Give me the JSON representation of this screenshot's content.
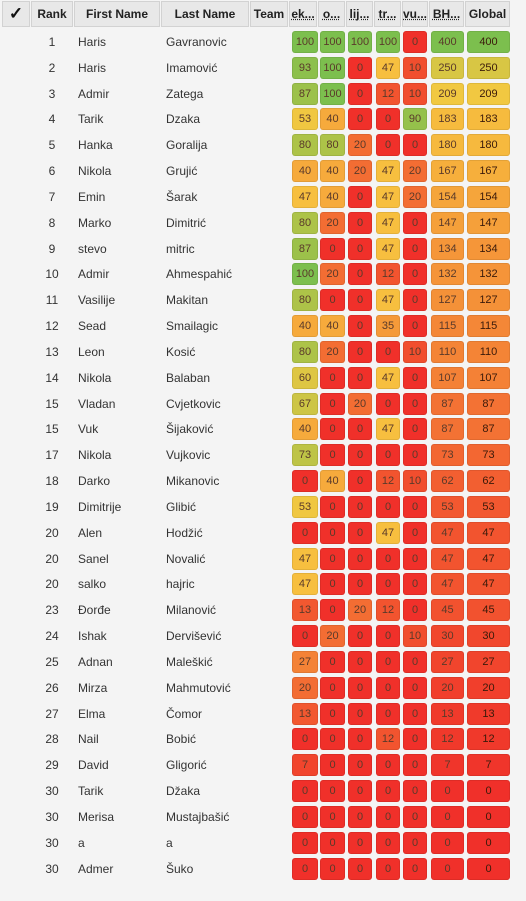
{
  "columns": {
    "check": "✓",
    "rank": "Rank",
    "first_name": "First Name",
    "last_name": "Last Name",
    "team": "Team",
    "c1": "ek...",
    "c2": "o...",
    "c3": "lij...",
    "c4": "tr...",
    "c5": "vu...",
    "c6": "BH...",
    "global": "Global"
  },
  "rows": [
    {
      "rank": "1",
      "first": "Haris",
      "last": "Gavranovic",
      "scores": [
        100,
        100,
        100,
        100,
        0,
        400
      ],
      "global": 400
    },
    {
      "rank": "2",
      "first": "Haris",
      "last": "Imamović",
      "scores": [
        93,
        100,
        0,
        47,
        10,
        250
      ],
      "global": 250
    },
    {
      "rank": "3",
      "first": "Admir",
      "last": "Zatega",
      "scores": [
        87,
        100,
        0,
        12,
        10,
        209
      ],
      "global": 209
    },
    {
      "rank": "4",
      "first": "Tarik",
      "last": "Dzaka",
      "scores": [
        53,
        40,
        0,
        0,
        90,
        183
      ],
      "global": 183
    },
    {
      "rank": "5",
      "first": "Hanka",
      "last": "Goralija",
      "scores": [
        80,
        80,
        20,
        0,
        0,
        180
      ],
      "global": 180
    },
    {
      "rank": "6",
      "first": "Nikola",
      "last": "Grujić",
      "scores": [
        40,
        40,
        20,
        47,
        20,
        167
      ],
      "global": 167
    },
    {
      "rank": "7",
      "first": "Emin",
      "last": "Šarak",
      "scores": [
        47,
        40,
        0,
        47,
        20,
        154
      ],
      "global": 154
    },
    {
      "rank": "8",
      "first": "Marko",
      "last": "Dimitrić",
      "scores": [
        80,
        20,
        0,
        47,
        0,
        147
      ],
      "global": 147
    },
    {
      "rank": "9",
      "first": "stevo",
      "last": "mitric",
      "scores": [
        87,
        0,
        0,
        47,
        0,
        134
      ],
      "global": 134
    },
    {
      "rank": "10",
      "first": "Admir",
      "last": "Ahmespahić",
      "scores": [
        100,
        20,
        0,
        12,
        0,
        132
      ],
      "global": 132
    },
    {
      "rank": "11",
      "first": "Vasilije",
      "last": "Makitan",
      "scores": [
        80,
        0,
        0,
        47,
        0,
        127
      ],
      "global": 127
    },
    {
      "rank": "12",
      "first": "Sead",
      "last": "Smailagic",
      "scores": [
        40,
        40,
        0,
        35,
        0,
        115
      ],
      "global": 115
    },
    {
      "rank": "13",
      "first": "Leon",
      "last": "Kosić",
      "scores": [
        80,
        20,
        0,
        0,
        10,
        110
      ],
      "global": 110
    },
    {
      "rank": "14",
      "first": "Nikola",
      "last": "Balaban",
      "scores": [
        60,
        0,
        0,
        47,
        0,
        107
      ],
      "global": 107
    },
    {
      "rank": "15",
      "first": "Vladan",
      "last": "Cvjetkovic",
      "scores": [
        67,
        0,
        20,
        0,
        0,
        87
      ],
      "global": 87
    },
    {
      "rank": "15",
      "first": "Vuk",
      "last": "Šijaković",
      "scores": [
        40,
        0,
        0,
        47,
        0,
        87
      ],
      "global": 87
    },
    {
      "rank": "17",
      "first": "Nikola",
      "last": "Vujkovic",
      "scores": [
        73,
        0,
        0,
        0,
        0,
        73
      ],
      "global": 73
    },
    {
      "rank": "18",
      "first": "Darko",
      "last": "Mikanovic",
      "scores": [
        0,
        40,
        0,
        12,
        10,
        62
      ],
      "global": 62
    },
    {
      "rank": "19",
      "first": "Dimitrije",
      "last": "Glibić",
      "scores": [
        53,
        0,
        0,
        0,
        0,
        53
      ],
      "global": 53
    },
    {
      "rank": "20",
      "first": "Alen",
      "last": "Hodžić",
      "scores": [
        0,
        0,
        0,
        47,
        0,
        47
      ],
      "global": 47
    },
    {
      "rank": "20",
      "first": "Sanel",
      "last": "Novalić",
      "scores": [
        47,
        0,
        0,
        0,
        0,
        47
      ],
      "global": 47
    },
    {
      "rank": "20",
      "first": "salko",
      "last": "hajric",
      "scores": [
        47,
        0,
        0,
        0,
        0,
        47
      ],
      "global": 47
    },
    {
      "rank": "23",
      "first": "Đorđe",
      "last": "Milanović",
      "scores": [
        13,
        0,
        20,
        12,
        0,
        45
      ],
      "global": 45
    },
    {
      "rank": "24",
      "first": "Ishak",
      "last": "Dervišević",
      "scores": [
        0,
        20,
        0,
        0,
        10,
        30
      ],
      "global": 30
    },
    {
      "rank": "25",
      "first": "Adnan",
      "last": "Maleškić",
      "scores": [
        27,
        0,
        0,
        0,
        0,
        27
      ],
      "global": 27
    },
    {
      "rank": "26",
      "first": "Mirza",
      "last": "Mahmutović",
      "scores": [
        20,
        0,
        0,
        0,
        0,
        20
      ],
      "global": 20
    },
    {
      "rank": "27",
      "first": "Elma",
      "last": "Čomor",
      "scores": [
        13,
        0,
        0,
        0,
        0,
        13
      ],
      "global": 13
    },
    {
      "rank": "28",
      "first": "Nail",
      "last": "Bobić",
      "scores": [
        0,
        0,
        0,
        12,
        0,
        12
      ],
      "global": 12
    },
    {
      "rank": "29",
      "first": "David",
      "last": "Gligorić",
      "scores": [
        7,
        0,
        0,
        0,
        0,
        7
      ],
      "global": 7
    },
    {
      "rank": "30",
      "first": "Tarik",
      "last": "Džaka",
      "scores": [
        0,
        0,
        0,
        0,
        0,
        0
      ],
      "global": 0
    },
    {
      "rank": "30",
      "first": "Merisa",
      "last": "Mustajbašić",
      "scores": [
        0,
        0,
        0,
        0,
        0,
        0
      ],
      "global": 0
    },
    {
      "rank": "30",
      "first": "a",
      "last": "a",
      "scores": [
        0,
        0,
        0,
        0,
        0,
        0
      ],
      "global": 0
    },
    {
      "rank": "30",
      "first": "Admer",
      "last": "Šuko",
      "scores": [
        0,
        0,
        0,
        0,
        0,
        0
      ],
      "global": 0
    }
  ],
  "colors": {
    "heat_low": "#f0302a",
    "heat_mid": "#f7c840",
    "heat_high": "#7cbf4e"
  }
}
